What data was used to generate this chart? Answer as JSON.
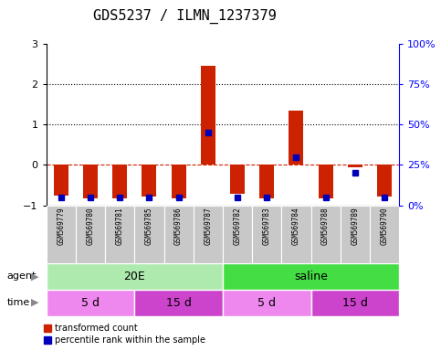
{
  "title": "GDS5237 / ILMN_1237379",
  "samples": [
    "GSM569779",
    "GSM569780",
    "GSM569781",
    "GSM569785",
    "GSM569786",
    "GSM569787",
    "GSM569782",
    "GSM569783",
    "GSM569784",
    "GSM569788",
    "GSM569789",
    "GSM569790"
  ],
  "red_values": [
    -0.75,
    -0.82,
    -0.82,
    -0.78,
    -0.82,
    2.45,
    -0.72,
    -0.82,
    1.35,
    -0.82,
    -0.05,
    -0.78
  ],
  "blue_pct": [
    5,
    5,
    5,
    5,
    5,
    45,
    5,
    5,
    30,
    5,
    20,
    5
  ],
  "ylim": [
    -1.0,
    3.0
  ],
  "y2lim": [
    0,
    100
  ],
  "yticks": [
    -1,
    0,
    1,
    2,
    3
  ],
  "y2ticks": [
    0,
    25,
    50,
    75,
    100
  ],
  "y2ticklabels": [
    "0%",
    "25%",
    "50%",
    "75%",
    "100%"
  ],
  "dotted_lines": [
    1.0,
    2.0
  ],
  "agent_labels": [
    {
      "label": "20E",
      "start": 0,
      "end": 6,
      "color": "#AEEAAE"
    },
    {
      "label": "saline",
      "start": 6,
      "end": 12,
      "color": "#44DD44"
    }
  ],
  "time_labels": [
    {
      "label": "5 d",
      "start": 0,
      "end": 3,
      "color": "#EE88EE"
    },
    {
      "label": "15 d",
      "start": 3,
      "end": 6,
      "color": "#CC44CC"
    },
    {
      "label": "5 d",
      "start": 6,
      "end": 9,
      "color": "#EE88EE"
    },
    {
      "label": "15 d",
      "start": 9,
      "end": 12,
      "color": "#CC44CC"
    }
  ],
  "bar_color": "#CC2200",
  "blue_color": "#0000BB",
  "zero_line_color": "#CC2200",
  "bg_color": "#FFFFFF",
  "legend_items": [
    "transformed count",
    "percentile rank within the sample"
  ],
  "bar_width": 0.5,
  "title_fontsize": 11,
  "label_fontsize": 5.5
}
